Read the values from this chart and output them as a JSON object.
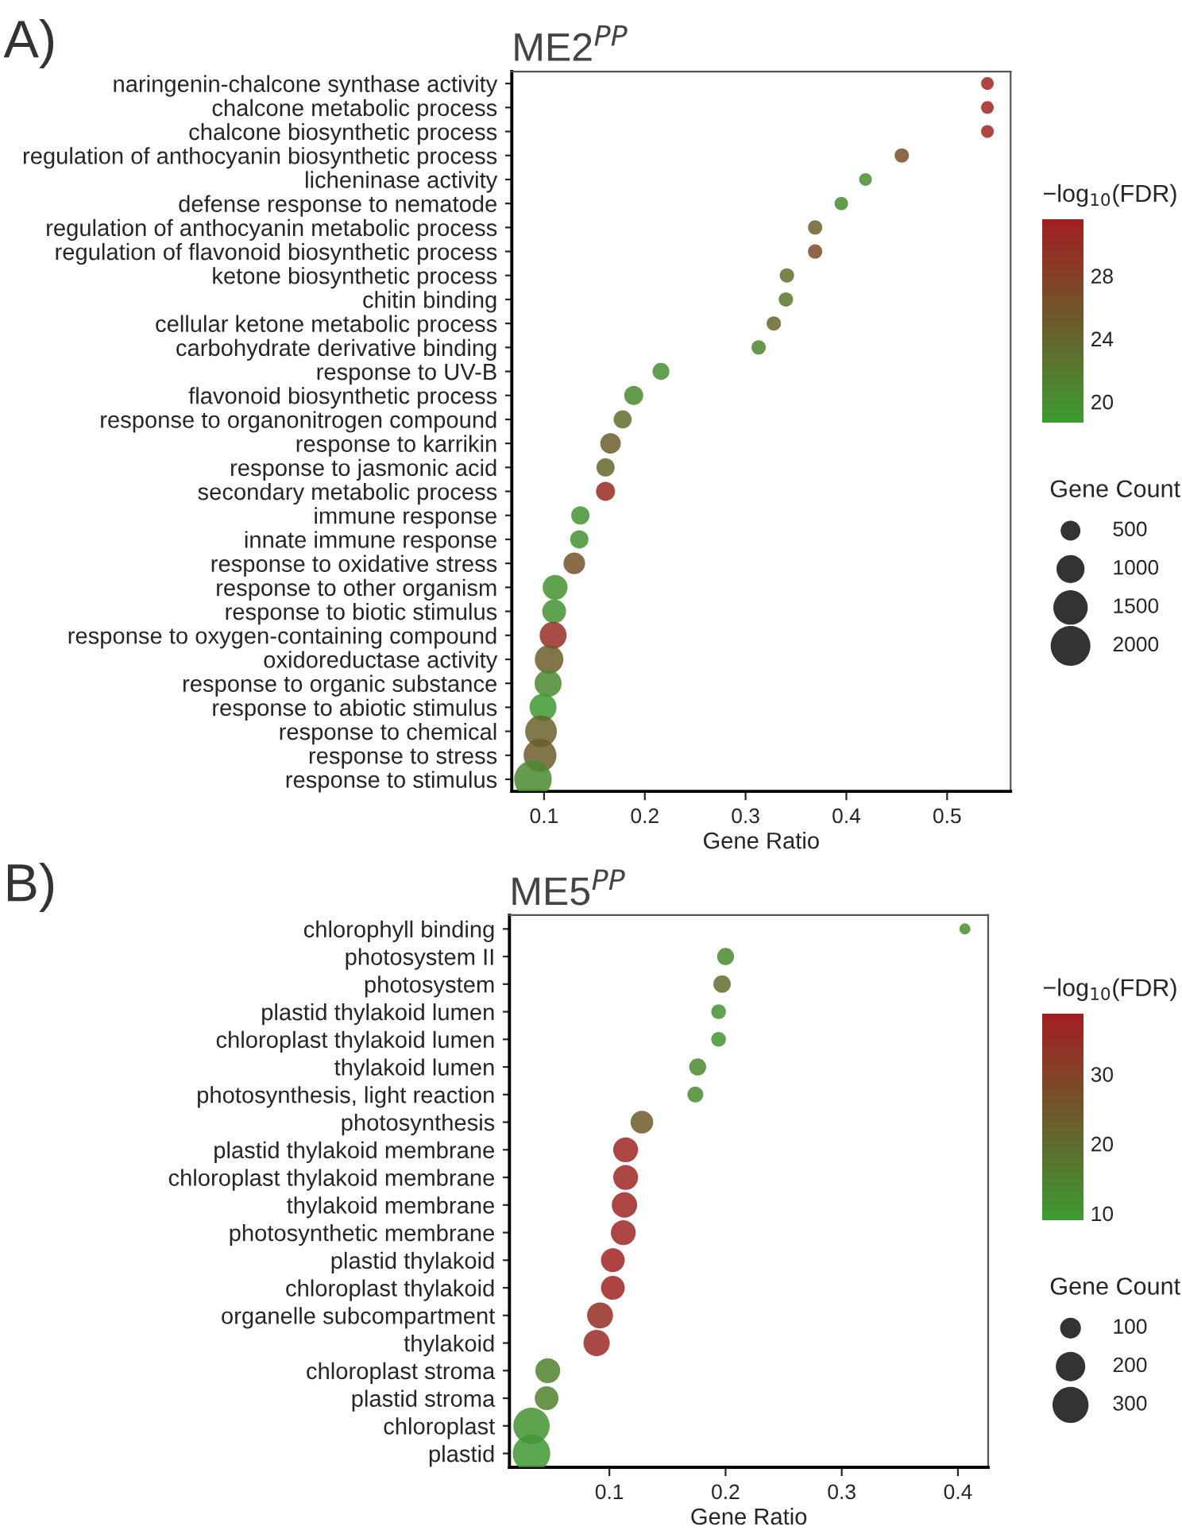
{
  "chart_data": [
    {
      "type": "bubble",
      "title": "ME2$^{PP}$",
      "xlabel": "Gene Ratio",
      "clabel": "−log$_{10}$(FDR)",
      "legend_title": "Gene Count",
      "annotations": [
        "A)"
      ],
      "categories": [
        "naringenin-chalcone synthase activity",
        "chalcone metabolic process",
        "chalcone biosynthetic process",
        "regulation of anthocyanin biosynthetic process",
        "licheninase activity",
        "defense response to nematode",
        "regulation of anthocyanin metabolic process",
        "regulation of flavonoid biosynthetic process",
        "ketone biosynthetic process",
        "chitin binding",
        "cellular ketone metabolic process",
        "carbohydrate derivative binding",
        "response to UV-B",
        "flavonoid biosynthetic process",
        "response to organonitrogen compound",
        "response to karrikin",
        "response to jasmonic acid",
        "secondary metabolic process",
        "immune response",
        "innate immune response",
        "response to oxidative stress",
        "response to other organism",
        "response to biotic stimulus",
        "response to oxygen-containing compound",
        "oxidoreductase activity",
        "response to organic substance",
        "response to abiotic stimulus",
        "response to chemical",
        "response to stress",
        "response to stimulus"
      ],
      "orientation": "horizontal",
      "values": [
        0.54,
        0.54,
        0.54,
        0.455,
        0.419,
        0.395,
        0.369,
        0.369,
        0.341,
        0.34,
        0.328,
        0.313,
        0.216,
        0.189,
        0.178,
        0.166,
        0.161,
        0.161,
        0.136,
        0.135,
        0.13,
        0.111,
        0.11,
        0.109,
        0.105,
        0.104,
        0.099,
        0.097,
        0.096,
        0.089
      ],
      "sizes": [
        205,
        205,
        205,
        260,
        205,
        230,
        260,
        260,
        260,
        260,
        260,
        260,
        366,
        461,
        416,
        532,
        423,
        461,
        423,
        423,
        592,
        789,
        720,
        925,
        1037,
        925,
        925,
        1280,
        1371,
        1782
      ],
      "cvalues": [
        31,
        31,
        31,
        26.5,
        20,
        20.5,
        24.5,
        27,
        23,
        22.5,
        24,
        21,
        20,
        20.5,
        23,
        25,
        24,
        30.5,
        19.5,
        19.5,
        26,
        19.5,
        19.5,
        30,
        25,
        20.5,
        19,
        24.5,
        25,
        20.5
      ],
      "size_legend": [
        500,
        1000,
        1500,
        2000
      ],
      "xlim": [
        0.068,
        0.563
      ],
      "xticks": [
        0.1,
        0.2,
        0.3,
        0.4,
        0.5
      ],
      "clim": [
        18.7,
        31.6
      ],
      "cticks": [
        20,
        24,
        28
      ],
      "grid": false
    },
    {
      "type": "bubble",
      "title": "ME5$^{PP}$",
      "xlabel": "Gene Ratio",
      "clabel": "−log$_{10}$(FDR)",
      "legend_title": "Gene Count",
      "annotations": [
        "B)"
      ],
      "categories": [
        "chlorophyll binding",
        "photosystem II",
        "photosystem",
        "plastid thylakoid lumen",
        "chloroplast thylakoid lumen",
        "thylakoid lumen",
        "photosynthesis, light reaction",
        "photosynthesis",
        "plastid thylakoid membrane",
        "chloroplast thylakoid membrane",
        "thylakoid membrane",
        "photosynthetic membrane",
        "plastid thylakoid",
        "chloroplast thylakoid",
        "organelle subcompartment",
        "thylakoid",
        "chloroplast stroma",
        "plastid stroma",
        "chloroplast",
        "plastid"
      ],
      "orientation": "horizontal",
      "values": [
        0.406,
        0.2,
        0.197,
        0.194,
        0.194,
        0.176,
        0.174,
        0.128,
        0.114,
        0.114,
        0.113,
        0.112,
        0.103,
        0.103,
        0.092,
        0.089,
        0.047,
        0.046,
        0.033,
        0.033
      ],
      "sizes": [
        28,
        67,
        70,
        50,
        50,
        67,
        58,
        119,
        143,
        143,
        149,
        143,
        131,
        131,
        156,
        160,
        143,
        131,
        305,
        324
      ],
      "cvalues": [
        12,
        13,
        20,
        11,
        11,
        13,
        13,
        24,
        37,
        37,
        37,
        37,
        38,
        38,
        35,
        36,
        15,
        15,
        11,
        10
      ],
      "size_legend": [
        100,
        200,
        300
      ],
      "xlim": [
        0.014,
        0.426
      ],
      "xticks": [
        0.1,
        0.2,
        0.3,
        0.4
      ],
      "clim": [
        9.1,
        38.7
      ],
      "cticks": [
        10,
        20,
        30
      ],
      "grid": false
    }
  ]
}
